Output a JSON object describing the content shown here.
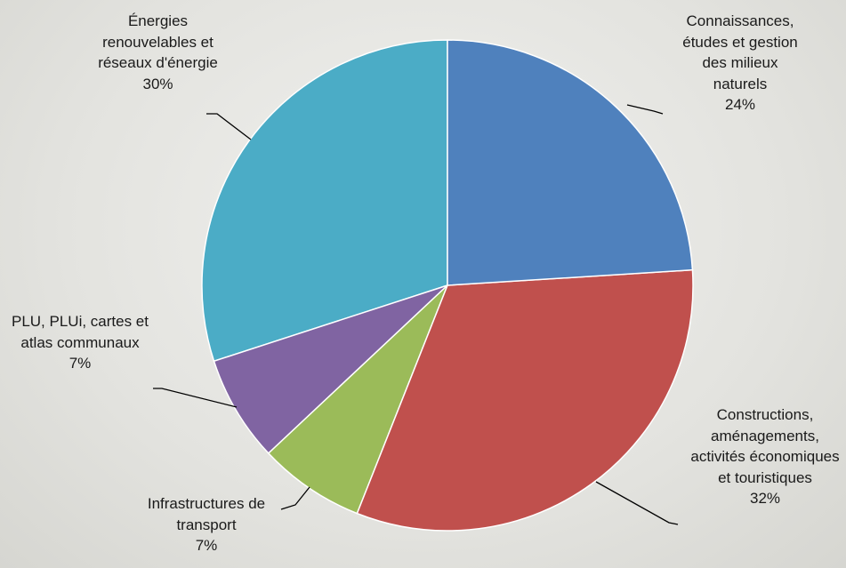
{
  "chart_data": {
    "type": "pie",
    "categories": [
      "Connaissances, études et gestion des milieux naturels",
      "Constructions, aménagements, activités économiques et touristiques",
      "Infrastructures de transport",
      "PLU, PLUi, cartes et atlas communaux",
      "Énergies renouvelables et réseaux d'énergie"
    ],
    "values": [
      24,
      32,
      7,
      7,
      30
    ],
    "value_labels": [
      "24%",
      "32%",
      "7%",
      "7%",
      "30%"
    ],
    "colors": [
      "#4f81bd",
      "#c0504d",
      "#9bbb59",
      "#8064a2",
      "#4bacc6"
    ]
  }
}
